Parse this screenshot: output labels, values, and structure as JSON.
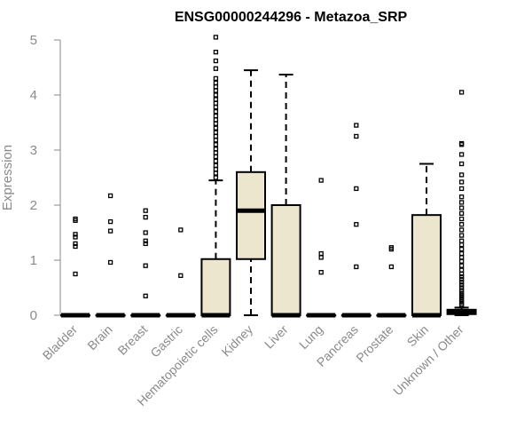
{
  "chart_data": {
    "type": "box",
    "title": "ENSG00000244296 - Metazoa_SRP",
    "xlabel": "",
    "ylabel": "Expression",
    "ylim": [
      0,
      5
    ],
    "yticks": [
      0,
      1,
      2,
      3,
      4,
      5
    ],
    "grid": false,
    "colors": {
      "box_fill": "#ede6cf",
      "box_stroke": "#000000",
      "axis": "#8a8a8a"
    },
    "categories": [
      "Bladder",
      "Brain",
      "Breast",
      "Gastric",
      "Hematopoietic cells",
      "Kidney",
      "Liver",
      "Lung",
      "Pancreas",
      "Prostate",
      "Skin",
      "Unknown / Other"
    ],
    "boxes": [
      {
        "category": "Bladder",
        "q1": 0,
        "median": 0,
        "q3": 0,
        "whisker_low": 0,
        "whisker_high": 0,
        "outliers": [
          0.75,
          1.25,
          1.3,
          1.42,
          1.47,
          1.72,
          1.75
        ]
      },
      {
        "category": "Brain",
        "q1": 0,
        "median": 0,
        "q3": 0,
        "whisker_low": 0,
        "whisker_high": 0,
        "outliers": [
          0.96,
          1.53,
          1.7,
          2.17
        ]
      },
      {
        "category": "Breast",
        "q1": 0,
        "median": 0,
        "q3": 0,
        "whisker_low": 0,
        "whisker_high": 0,
        "outliers": [
          0.35,
          0.9,
          1.3,
          1.35,
          1.5,
          1.78,
          1.9
        ]
      },
      {
        "category": "Gastric",
        "q1": 0,
        "median": 0,
        "q3": 0,
        "whisker_low": 0,
        "whisker_high": 0,
        "outliers": [
          0.72,
          1.55
        ]
      },
      {
        "category": "Hematopoietic cells",
        "q1": 0,
        "median": 0,
        "q3": 1.02,
        "whisker_low": 0,
        "whisker_high": 2.45,
        "outliers": [
          2.5,
          2.58,
          2.65,
          2.72,
          2.8,
          2.88,
          2.95,
          3.02,
          3.1,
          3.18,
          3.25,
          3.32,
          3.4,
          3.48,
          3.55,
          3.62,
          3.7,
          3.78,
          3.85,
          3.92,
          4.0,
          4.08,
          4.15,
          4.22,
          4.3,
          4.48,
          4.62,
          4.78,
          5.05
        ]
      },
      {
        "category": "Kidney",
        "q1": 1.02,
        "median": 1.9,
        "q3": 2.6,
        "whisker_low": 0,
        "whisker_high": 4.45,
        "outliers": []
      },
      {
        "category": "Liver",
        "q1": 0,
        "median": 0,
        "q3": 2.0,
        "whisker_low": 0,
        "whisker_high": 4.37,
        "outliers": []
      },
      {
        "category": "Lung",
        "q1": 0,
        "median": 0,
        "q3": 0,
        "whisker_low": 0,
        "whisker_high": 0,
        "outliers": [
          0.78,
          1.05,
          1.12,
          2.45
        ]
      },
      {
        "category": "Pancreas",
        "q1": 0,
        "median": 0,
        "q3": 0,
        "whisker_low": 0,
        "whisker_high": 0,
        "outliers": [
          0.88,
          1.65,
          2.3,
          3.25,
          3.45
        ]
      },
      {
        "category": "Prostate",
        "q1": 0,
        "median": 0,
        "q3": 0,
        "whisker_low": 0,
        "whisker_high": 0,
        "outliers": [
          0.88,
          1.2,
          1.23
        ]
      },
      {
        "category": "Skin",
        "q1": 0,
        "median": 0,
        "q3": 1.82,
        "whisker_low": 0,
        "whisker_high": 2.75,
        "outliers": []
      },
      {
        "category": "Unknown / Other",
        "q1": 0.02,
        "median": 0.05,
        "q3": 0.1,
        "whisker_low": 0,
        "whisker_high": 0.14,
        "outliers": [
          0.17,
          0.2,
          0.24,
          0.28,
          0.32,
          0.36,
          0.4,
          0.45,
          0.5,
          0.55,
          0.6,
          0.65,
          0.7,
          0.75,
          0.82,
          0.9,
          0.98,
          1.05,
          1.12,
          1.2,
          1.28,
          1.35,
          1.45,
          1.55,
          1.65,
          1.75,
          1.85,
          1.95,
          2.05,
          2.15,
          2.3,
          2.42,
          2.55,
          2.75,
          2.92,
          3.1,
          3.12,
          4.05
        ]
      }
    ]
  }
}
